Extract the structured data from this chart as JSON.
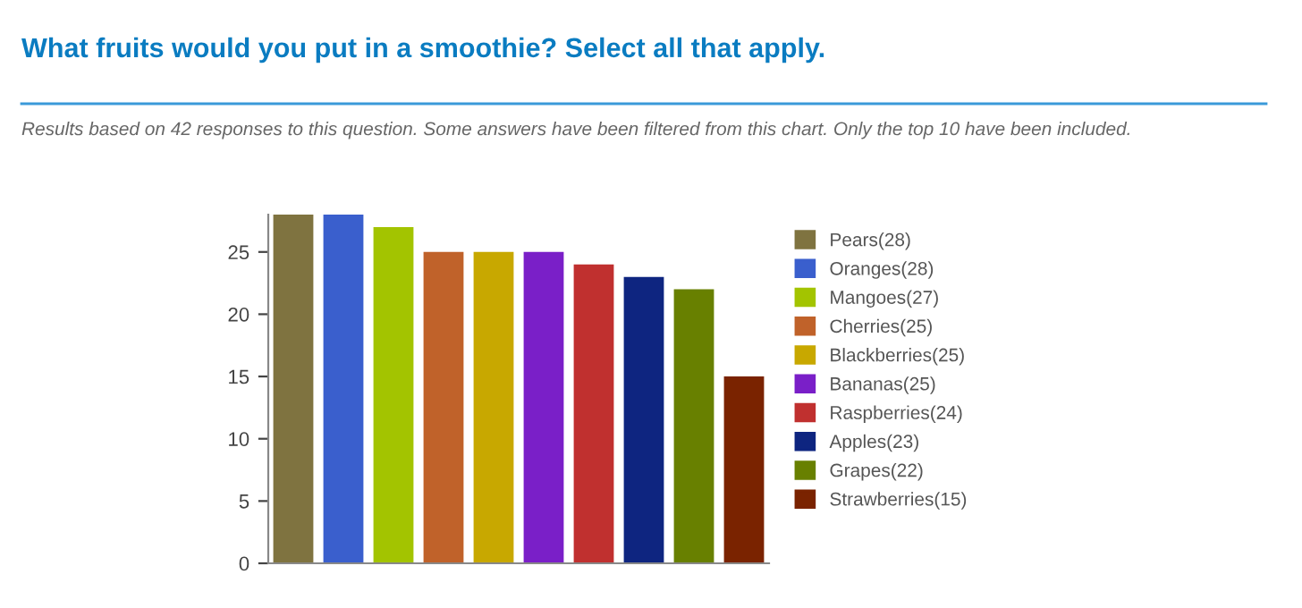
{
  "chart_data": {
    "type": "bar",
    "title": "What fruits would you put in a smoothie? Select all that apply.",
    "subtitle": "Results based on 42 responses to this question. Some answers have been filtered from this chart. Only the top 10 have been included.",
    "categories": [
      null,
      null,
      null,
      null,
      null,
      null,
      null,
      null,
      null,
      null
    ],
    "series": [
      {
        "name": "Pears(28)",
        "color": "#7f7340",
        "values": [
          28,
          null,
          null,
          null,
          null,
          null,
          null,
          null,
          null,
          null
        ]
      },
      {
        "name": "Oranges(28)",
        "color": "#3a5fcd",
        "values": [
          null,
          28,
          null,
          null,
          null,
          null,
          null,
          null,
          null,
          null
        ]
      },
      {
        "name": "Mangoes(27)",
        "color": "#a3c400",
        "values": [
          null,
          null,
          27,
          null,
          null,
          null,
          null,
          null,
          null,
          null
        ]
      },
      {
        "name": "Cherries(25)",
        "color": "#c0622a",
        "values": [
          null,
          null,
          null,
          25,
          null,
          null,
          null,
          null,
          null,
          null
        ]
      },
      {
        "name": "Blackberries(25)",
        "color": "#c8a800",
        "values": [
          null,
          null,
          null,
          null,
          25,
          null,
          null,
          null,
          null,
          null
        ]
      },
      {
        "name": "Bananas(25)",
        "color": "#7a1fc8",
        "values": [
          null,
          null,
          null,
          null,
          null,
          25,
          null,
          null,
          null,
          null
        ]
      },
      {
        "name": "Raspberries(24)",
        "color": "#c0302f",
        "values": [
          null,
          null,
          null,
          null,
          null,
          null,
          24,
          null,
          null,
          null
        ]
      },
      {
        "name": "Apples(23)",
        "color": "#0e2580",
        "values": [
          null,
          null,
          null,
          null,
          null,
          null,
          null,
          23,
          null,
          null
        ]
      },
      {
        "name": "Grapes(22)",
        "color": "#688000",
        "values": [
          null,
          null,
          null,
          null,
          null,
          null,
          null,
          null,
          22,
          null
        ]
      },
      {
        "name": "Strawberries(15)",
        "color": "#7a2300",
        "values": [
          null,
          null,
          null,
          null,
          null,
          null,
          null,
          null,
          null,
          15
        ]
      }
    ],
    "ylim": [
      0,
      28
    ],
    "yticks": [
      0,
      5,
      10,
      15,
      20,
      25
    ],
    "grid": false,
    "legend": "right"
  }
}
